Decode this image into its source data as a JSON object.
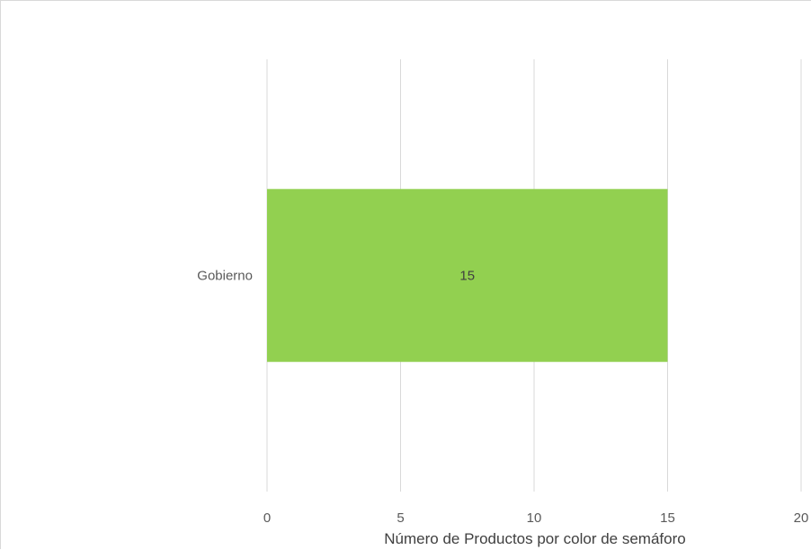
{
  "chart_data": {
    "type": "bar",
    "orientation": "horizontal",
    "categories": [
      "Gobierno"
    ],
    "series": [
      {
        "values": [
          15
        ],
        "color": "#92d050"
      }
    ],
    "data_labels": [
      "15"
    ],
    "xlabel": "Número de Productos por color de semáforo",
    "ylabel": "",
    "xlim": [
      0,
      20
    ],
    "xticks": [
      0,
      5,
      10,
      15,
      20
    ],
    "xtick_labels": [
      "0",
      "5",
      "10",
      "15",
      "20"
    ],
    "grid": "vertical",
    "gridline_color": "#d9d9d9"
  }
}
